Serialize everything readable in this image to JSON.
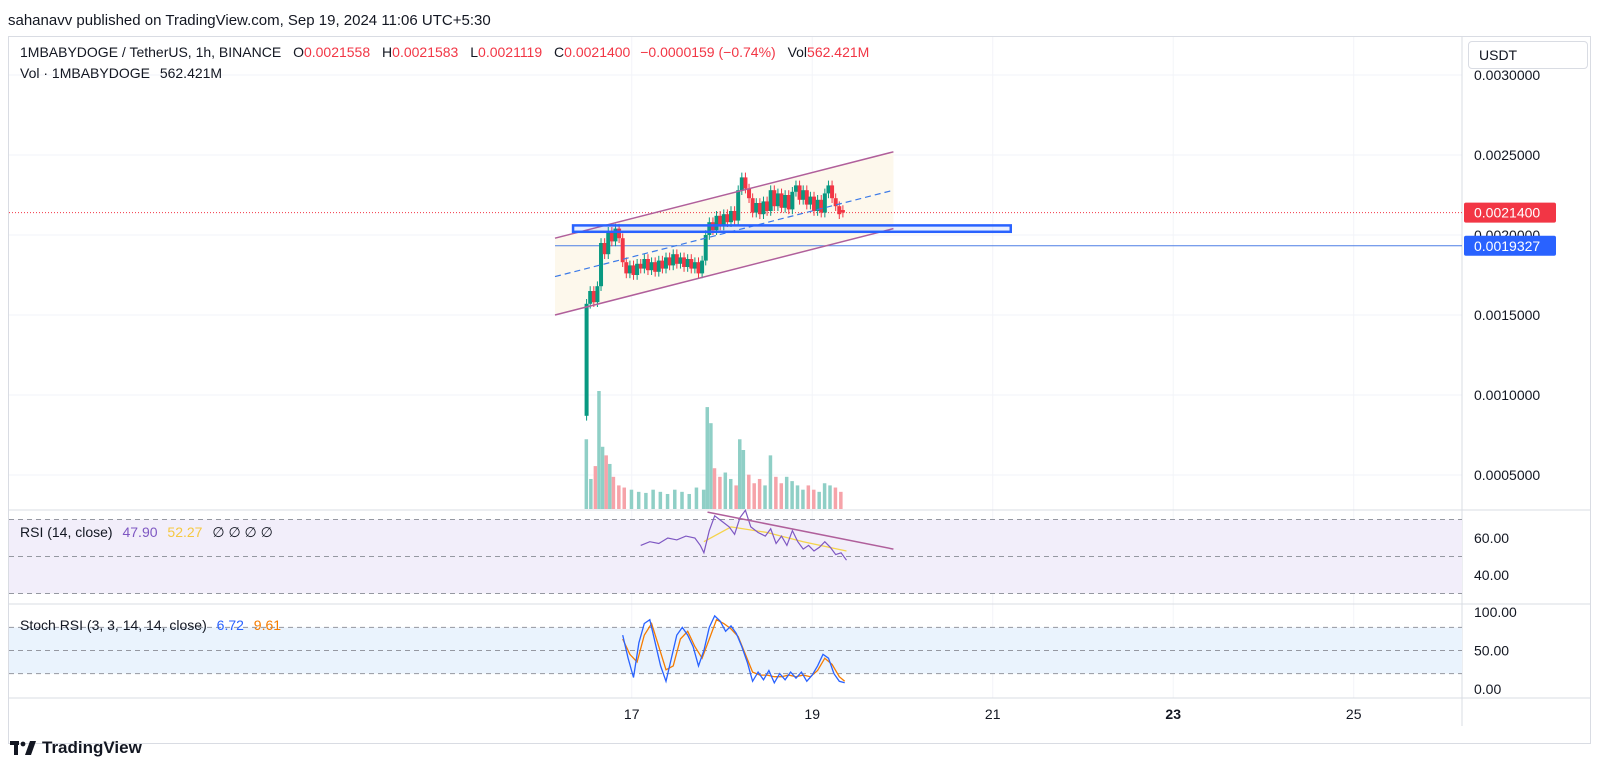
{
  "header": {
    "published": "sahanavv published on TradingView.com, Sep 19, 2024 11:06 UTC+5:30"
  },
  "legend": {
    "symbol": "1MBABYDOGE / TetherUS, 1h, BINANCE",
    "o_label": "O",
    "o": "0.0021558",
    "h_label": "H",
    "h": "0.0021583",
    "l_label": "L",
    "l": "0.0021119",
    "c_label": "C",
    "c": "0.0021400",
    "change": "−0.0000159 (−0.74%)",
    "vol_label": "Vol",
    "vol": "562.421M",
    "vol_line_label": "Vol · 1MBABYDOGE",
    "vol_line_value": "562.421M"
  },
  "currency": "USDT",
  "rsi_legend": {
    "label": "RSI (14, close)",
    "v1": "47.90",
    "v2": "52.27",
    "extra": "∅ ∅ ∅ ∅"
  },
  "stoch_legend": {
    "label": "Stoch RSI (3, 3, 14, 14, close)",
    "k": "6.72",
    "d": "9.61"
  },
  "footer": {
    "brand": "TradingView"
  },
  "colors": {
    "up": "#089981",
    "down": "#f23645",
    "vol_up": "#8fcfc6",
    "vol_down": "#f6a3a9",
    "channel": "#b05f9b",
    "channel_fill": "#fdf8ec",
    "midline": "#3b7ae8",
    "box": "#2962ff",
    "support_line": "#4d7fe5",
    "rsi_line": "#7e57c2",
    "rsi_ma": "#f5d34b",
    "rsi_bg": "#f2eefa",
    "stoch_bg": "#eaf3fd",
    "stoch_k": "#2962ff",
    "stoch_d": "#f57c00"
  },
  "chart_data": {
    "type": "candlestick",
    "price_axis": {
      "ticks": [
        "0.0030000",
        "0.0025000",
        "0.0020000",
        "0.0015000",
        "0.0010000",
        "0.0005000"
      ],
      "tick_values": [
        0.003,
        0.0025,
        0.002,
        0.0015,
        0.001,
        0.0005
      ],
      "last_price_label": "0.0021400",
      "last_price": 0.00214,
      "support_label": "0.0019327",
      "support": 0.0019327
    },
    "rsi_axis": {
      "ticks": [
        "60.00",
        "40.00"
      ],
      "tick_values": [
        60,
        40
      ],
      "bands": [
        70,
        50,
        30
      ]
    },
    "stoch_axis": {
      "ticks": [
        "100.00",
        "50.00",
        "0.00"
      ],
      "tick_values": [
        100,
        50,
        0
      ],
      "bands": [
        80,
        50,
        20
      ]
    },
    "time_axis": {
      "labels": [
        "17",
        "19",
        "21",
        "23",
        "25"
      ],
      "label_times": [
        0.5,
        2.5,
        4.5,
        6.5,
        8.5
      ],
      "bold": [
        "23"
      ],
      "range": [
        -6.4,
        9.7
      ]
    },
    "candles": [
      [
        0.0,
        0.00087,
        0.00157
      ],
      [
        0.04,
        0.00157,
        0.00165
      ],
      [
        0.08,
        0.00165,
        0.00158
      ],
      [
        0.12,
        0.00158,
        0.00168
      ],
      [
        0.16,
        0.00168,
        0.00195
      ],
      [
        0.2,
        0.00195,
        0.00188
      ],
      [
        0.24,
        0.00188,
        0.00202
      ],
      [
        0.28,
        0.00202,
        0.00196
      ],
      [
        0.32,
        0.00196,
        0.00204
      ],
      [
        0.36,
        0.00204,
        0.00198
      ],
      [
        0.4,
        0.00198,
        0.00183
      ],
      [
        0.44,
        0.00183,
        0.00176
      ],
      [
        0.48,
        0.00176,
        0.00181
      ],
      [
        0.52,
        0.00181,
        0.00175
      ],
      [
        0.56,
        0.00175,
        0.00182
      ],
      [
        0.6,
        0.00182,
        0.00179
      ],
      [
        0.64,
        0.00179,
        0.00185
      ],
      [
        0.68,
        0.00185,
        0.00178
      ],
      [
        0.72,
        0.00178,
        0.00183
      ],
      [
        0.76,
        0.00183,
        0.00177
      ],
      [
        0.8,
        0.00177,
        0.00184
      ],
      [
        0.84,
        0.00184,
        0.00179
      ],
      [
        0.88,
        0.00179,
        0.00186
      ],
      [
        0.92,
        0.00186,
        0.00181
      ],
      [
        0.96,
        0.00181,
        0.00188
      ],
      [
        1.0,
        0.00188,
        0.00182
      ],
      [
        1.04,
        0.00182,
        0.00186
      ],
      [
        1.08,
        0.00186,
        0.0018
      ],
      [
        1.12,
        0.0018,
        0.00185
      ],
      [
        1.16,
        0.00185,
        0.00179
      ],
      [
        1.2,
        0.00179,
        0.00183
      ],
      [
        1.24,
        0.00183,
        0.00176
      ],
      [
        1.28,
        0.00176,
        0.00184
      ],
      [
        1.32,
        0.00184,
        0.002
      ],
      [
        1.36,
        0.002,
        0.00208
      ],
      [
        1.4,
        0.00208,
        0.00203
      ],
      [
        1.44,
        0.00203,
        0.00212
      ],
      [
        1.48,
        0.00212,
        0.00206
      ],
      [
        1.52,
        0.00206,
        0.00213
      ],
      [
        1.56,
        0.00213,
        0.00208
      ],
      [
        1.6,
        0.00208,
        0.00215
      ],
      [
        1.64,
        0.00215,
        0.00209
      ],
      [
        1.68,
        0.00209,
        0.00228
      ],
      [
        1.72,
        0.00228,
        0.00236
      ],
      [
        1.76,
        0.00236,
        0.00229
      ],
      [
        1.8,
        0.00229,
        0.00223
      ],
      [
        1.84,
        0.00223,
        0.00214
      ],
      [
        1.88,
        0.00214,
        0.0022
      ],
      [
        1.92,
        0.0022,
        0.00213
      ],
      [
        1.96,
        0.00213,
        0.00221
      ],
      [
        2.0,
        0.00221,
        0.00215
      ],
      [
        2.04,
        0.00215,
        0.00228
      ],
      [
        2.08,
        0.00228,
        0.00218
      ],
      [
        2.12,
        0.00218,
        0.00226
      ],
      [
        2.16,
        0.00226,
        0.00217
      ],
      [
        2.2,
        0.00217,
        0.00225
      ],
      [
        2.24,
        0.00225,
        0.00216
      ],
      [
        2.28,
        0.00216,
        0.00227
      ],
      [
        2.32,
        0.00227,
        0.00231
      ],
      [
        2.36,
        0.00231,
        0.00222
      ],
      [
        2.4,
        0.00222,
        0.00228
      ],
      [
        2.44,
        0.00228,
        0.00219
      ],
      [
        2.48,
        0.00219,
        0.00224
      ],
      [
        2.52,
        0.00224,
        0.00215
      ],
      [
        2.56,
        0.00215,
        0.00222
      ],
      [
        2.6,
        0.00222,
        0.00214
      ],
      [
        2.64,
        0.00214,
        0.00226
      ],
      [
        2.68,
        0.00226,
        0.00231
      ],
      [
        2.72,
        0.00231,
        0.00223
      ],
      [
        2.76,
        0.00223,
        0.00218
      ],
      [
        2.8,
        0.00218,
        0.00213
      ],
      [
        2.84,
        0.002156,
        0.00214
      ]
    ],
    "candle_wicks_note": "high/low approximated as body ±0.00003",
    "volume": [
      [
        0.0,
        0.00065
      ],
      [
        0.05,
        0.00028
      ],
      [
        0.1,
        0.0004
      ],
      [
        0.14,
        0.0011
      ],
      [
        0.18,
        0.00058
      ],
      [
        0.22,
        0.0005
      ],
      [
        0.26,
        0.00042
      ],
      [
        0.3,
        0.0003
      ],
      [
        0.36,
        0.00022
      ],
      [
        0.42,
        0.0002
      ],
      [
        0.5,
        0.00018
      ],
      [
        0.58,
        0.00016
      ],
      [
        0.66,
        0.00015
      ],
      [
        0.74,
        0.00018
      ],
      [
        0.82,
        0.00016
      ],
      [
        0.9,
        0.00014
      ],
      [
        0.98,
        0.00018
      ],
      [
        1.06,
        0.00016
      ],
      [
        1.14,
        0.00014
      ],
      [
        1.22,
        0.0002
      ],
      [
        1.3,
        0.00018
      ],
      [
        1.34,
        0.00095
      ],
      [
        1.38,
        0.0008
      ],
      [
        1.42,
        0.00038
      ],
      [
        1.48,
        0.0003
      ],
      [
        1.54,
        0.00034
      ],
      [
        1.6,
        0.00028
      ],
      [
        1.66,
        0.00022
      ],
      [
        1.7,
        0.00065
      ],
      [
        1.74,
        0.00055
      ],
      [
        1.8,
        0.00032
      ],
      [
        1.86,
        0.00024
      ],
      [
        1.92,
        0.00028
      ],
      [
        1.98,
        0.00022
      ],
      [
        2.04,
        0.0005
      ],
      [
        2.1,
        0.0003
      ],
      [
        2.16,
        0.00024
      ],
      [
        2.22,
        0.0003
      ],
      [
        2.28,
        0.00026
      ],
      [
        2.34,
        0.00022
      ],
      [
        2.4,
        0.00018
      ],
      [
        2.46,
        0.00022
      ],
      [
        2.52,
        0.00018
      ],
      [
        2.58,
        0.00016
      ],
      [
        2.64,
        0.00024
      ],
      [
        2.7,
        0.00022
      ],
      [
        2.76,
        0.0002
      ],
      [
        2.82,
        0.00016
      ]
    ],
    "channel": {
      "upper": [
        [
          -0.35,
          0.00198
        ],
        [
          3.4,
          0.00252
        ]
      ],
      "lower": [
        [
          -0.35,
          0.0015
        ],
        [
          3.4,
          0.00204
        ]
      ],
      "mid": [
        [
          -0.35,
          0.00174
        ],
        [
          3.4,
          0.00228
        ]
      ]
    },
    "zone_box": {
      "t0": -0.15,
      "t1": 4.7,
      "p_low": 0.00202,
      "p_high": 0.00206
    },
    "support_line_start": -0.35,
    "rsi": [
      [
        0.6,
        56
      ],
      [
        0.7,
        58
      ],
      [
        0.8,
        57
      ],
      [
        0.9,
        60
      ],
      [
        1.0,
        59
      ],
      [
        1.1,
        61
      ],
      [
        1.2,
        60
      ],
      [
        1.26,
        56
      ],
      [
        1.3,
        52
      ],
      [
        1.36,
        64
      ],
      [
        1.42,
        72
      ],
      [
        1.5,
        69
      ],
      [
        1.58,
        66
      ],
      [
        1.64,
        62
      ],
      [
        1.7,
        71
      ],
      [
        1.76,
        75
      ],
      [
        1.82,
        66
      ],
      [
        1.9,
        63
      ],
      [
        1.98,
        61
      ],
      [
        2.04,
        65
      ],
      [
        2.1,
        57
      ],
      [
        2.16,
        61
      ],
      [
        2.22,
        56
      ],
      [
        2.28,
        64
      ],
      [
        2.34,
        58
      ],
      [
        2.4,
        54
      ],
      [
        2.46,
        56
      ],
      [
        2.52,
        53
      ],
      [
        2.58,
        55
      ],
      [
        2.64,
        58
      ],
      [
        2.7,
        55
      ],
      [
        2.76,
        51
      ],
      [
        2.82,
        52
      ],
      [
        2.88,
        48
      ]
    ],
    "rsi_ma": [
      [
        1.3,
        58
      ],
      [
        1.6,
        66
      ],
      [
        2.0,
        63
      ],
      [
        2.4,
        58
      ],
      [
        2.88,
        53
      ]
    ],
    "rsi_trendline": [
      [
        1.34,
        74
      ],
      [
        3.4,
        54
      ]
    ],
    "stoch_k": [
      [
        0.4,
        70
      ],
      [
        0.46,
        40
      ],
      [
        0.52,
        15
      ],
      [
        0.58,
        60
      ],
      [
        0.64,
        85
      ],
      [
        0.7,
        90
      ],
      [
        0.76,
        60
      ],
      [
        0.82,
        30
      ],
      [
        0.88,
        10
      ],
      [
        0.94,
        40
      ],
      [
        1.0,
        70
      ],
      [
        1.06,
        80
      ],
      [
        1.12,
        70
      ],
      [
        1.18,
        55
      ],
      [
        1.24,
        30
      ],
      [
        1.3,
        50
      ],
      [
        1.36,
        80
      ],
      [
        1.42,
        95
      ],
      [
        1.48,
        88
      ],
      [
        1.54,
        75
      ],
      [
        1.6,
        82
      ],
      [
        1.66,
        72
      ],
      [
        1.72,
        55
      ],
      [
        1.78,
        35
      ],
      [
        1.84,
        10
      ],
      [
        1.9,
        22
      ],
      [
        1.96,
        12
      ],
      [
        2.02,
        24
      ],
      [
        2.08,
        8
      ],
      [
        2.14,
        20
      ],
      [
        2.2,
        12
      ],
      [
        2.26,
        22
      ],
      [
        2.32,
        14
      ],
      [
        2.38,
        22
      ],
      [
        2.44,
        10
      ],
      [
        2.5,
        18
      ],
      [
        2.56,
        30
      ],
      [
        2.62,
        45
      ],
      [
        2.68,
        40
      ],
      [
        2.74,
        20
      ],
      [
        2.8,
        10
      ],
      [
        2.86,
        8
      ]
    ],
    "stoch_d": [
      [
        0.4,
        65
      ],
      [
        0.48,
        45
      ],
      [
        0.56,
        35
      ],
      [
        0.64,
        70
      ],
      [
        0.72,
        85
      ],
      [
        0.8,
        55
      ],
      [
        0.88,
        25
      ],
      [
        0.96,
        30
      ],
      [
        1.04,
        65
      ],
      [
        1.12,
        75
      ],
      [
        1.2,
        55
      ],
      [
        1.28,
        40
      ],
      [
        1.36,
        65
      ],
      [
        1.44,
        90
      ],
      [
        1.52,
        85
      ],
      [
        1.6,
        78
      ],
      [
        1.68,
        68
      ],
      [
        1.76,
        45
      ],
      [
        1.84,
        22
      ],
      [
        1.92,
        18
      ],
      [
        2.0,
        18
      ],
      [
        2.08,
        16
      ],
      [
        2.16,
        16
      ],
      [
        2.24,
        18
      ],
      [
        2.32,
        16
      ],
      [
        2.4,
        18
      ],
      [
        2.48,
        16
      ],
      [
        2.56,
        24
      ],
      [
        2.64,
        40
      ],
      [
        2.72,
        32
      ],
      [
        2.8,
        16
      ],
      [
        2.86,
        10
      ]
    ]
  }
}
